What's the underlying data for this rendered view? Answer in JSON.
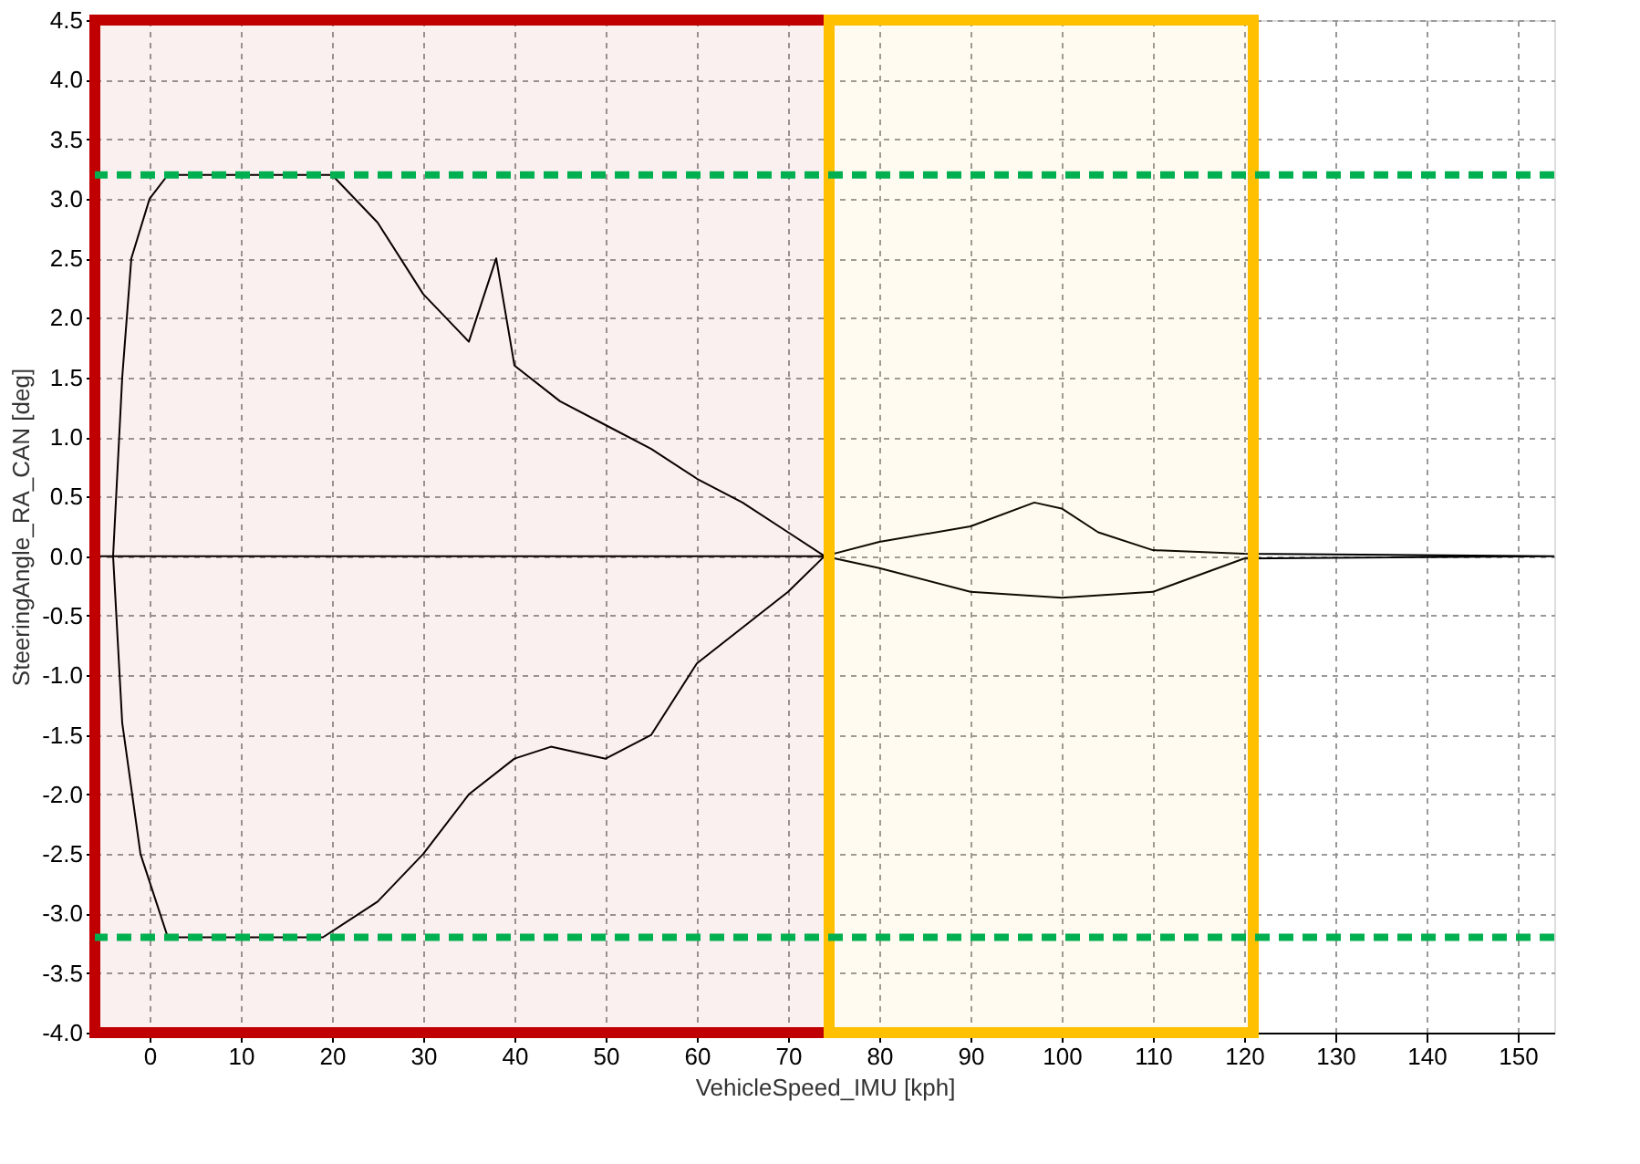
{
  "chart_data": {
    "type": "line",
    "xlabel": "VehicleSpeed_IMU [kph]",
    "ylabel": "SteeringAngle_RA_CAN [deg]",
    "xlim": [
      -6,
      154
    ],
    "ylim": [
      -4,
      4.5
    ],
    "xticks": [
      0,
      10,
      20,
      30,
      40,
      50,
      60,
      70,
      80,
      90,
      100,
      110,
      120,
      130,
      140,
      150
    ],
    "yticks": [
      {
        "value": -4,
        "label": "-4.0"
      },
      -3.5,
      {
        "value": -3,
        "label": "-3.0"
      },
      -2.5,
      {
        "value": -2,
        "label": "-2.0"
      },
      -1.5,
      {
        "value": -1,
        "label": "-1.0"
      },
      -0.5,
      {
        "value": 0,
        "label": "0.0"
      },
      0.5,
      {
        "value": 1,
        "label": "1.0"
      },
      1.5,
      {
        "value": 2,
        "label": "2.0"
      },
      2.5,
      {
        "value": 3,
        "label": "3.0"
      },
      3.5,
      {
        "value": 4,
        "label": "4.0"
      },
      4.5
    ],
    "grid": true,
    "legend": false,
    "marker": "none",
    "line_style": "solid",
    "series": [
      {
        "color": "#000000",
        "x": [
          -6,
          -4,
          -3,
          -2,
          0,
          2,
          20,
          25,
          30,
          35,
          38,
          40,
          45,
          50,
          55,
          60,
          65,
          70,
          74,
          80,
          90,
          97,
          100,
          104,
          110,
          120,
          154,
          120,
          110,
          100,
          90,
          80,
          74,
          70,
          65,
          60,
          55,
          50,
          44,
          40,
          35,
          30,
          25,
          19,
          2,
          -1,
          -3,
          -4,
          0,
          20,
          40,
          60,
          74
        ],
        "values": [
          0.0,
          0.0,
          1.5,
          2.5,
          3.0,
          3.2,
          3.2,
          2.8,
          2.2,
          1.8,
          2.5,
          1.6,
          1.3,
          1.1,
          0.9,
          0.65,
          0.45,
          0.2,
          0.0,
          0.12,
          0.25,
          0.45,
          0.4,
          0.2,
          0.05,
          0.02,
          0.0,
          -0.02,
          -0.3,
          -0.35,
          -0.3,
          -0.1,
          0.0,
          -0.3,
          -0.6,
          -0.9,
          -1.5,
          -1.7,
          -1.6,
          -1.7,
          -2.0,
          -2.5,
          -2.9,
          -3.2,
          -3.2,
          -2.5,
          -1.4,
          0.0,
          0.0,
          0.0,
          0.0,
          0.0,
          0.0
        ]
      }
    ],
    "ref_lines": [
      {
        "axis": "y",
        "value": 3.2,
        "color": "#00b050",
        "line_style": "dashed"
      },
      {
        "axis": "y",
        "value": -3.2,
        "color": "#00b050",
        "line_style": "dashed"
      }
    ],
    "bands": [
      {
        "axis": "x",
        "from": -6,
        "to": 74.5,
        "color": "#c00000"
      },
      {
        "axis": "x",
        "from": 74.5,
        "to": 121,
        "color": "#ffc000"
      }
    ]
  }
}
